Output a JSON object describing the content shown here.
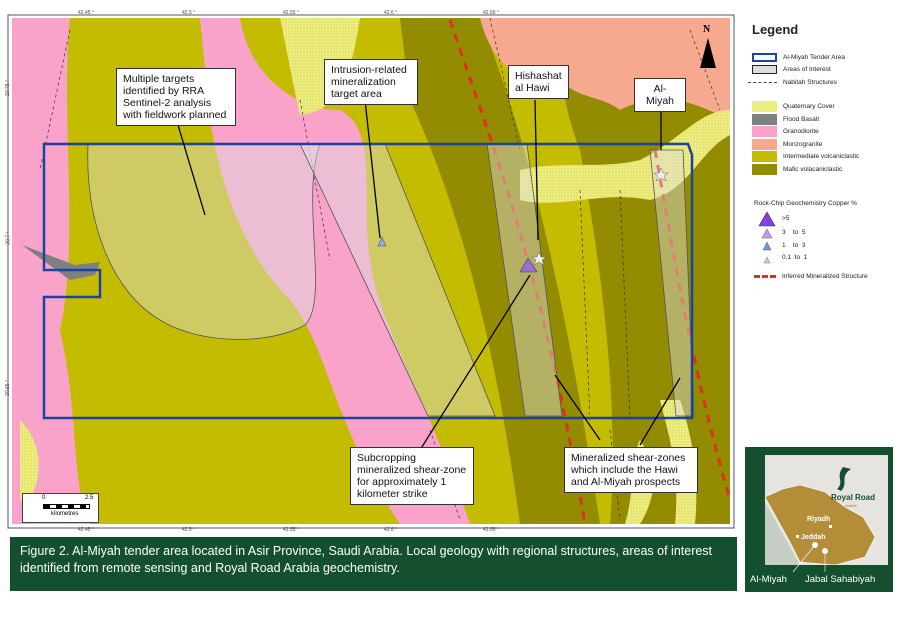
{
  "map": {
    "x_ticks": [
      "42.45 °",
      "42.5 °",
      "42.55 °",
      "42.6 °",
      "42.65 °"
    ],
    "y_ticks": [
      "20.75 °",
      "20.7 °",
      "20.65 °"
    ],
    "north_label": "N",
    "scale": {
      "start": "0",
      "end": "2.5",
      "unit": "kilometres"
    },
    "callouts": {
      "multiple_targets": "Multiple targets identified by RRA Sentinel-2 analysis with fieldwork planned",
      "intrusion": "Intrusion-related mineralization target area",
      "hishashat": "Hishashat al Hawi",
      "almiyah": "Al-Miyah",
      "subcropping": "Subcropping mineralized shear-zone for approximately 1 kilometer strike",
      "shear_zones": "Mineralized shear-zones which include the Hawi and Al-Miyah prospects"
    },
    "colors": {
      "intermediate": "#c4bc00",
      "mafic": "#938b00",
      "granodiorite": "#f9a3cb",
      "monzogranite": "#f6a98e",
      "quaternary": "#eeee80",
      "basalt": "#808080",
      "tender": "#1a44a0",
      "inferred": "#e03020"
    }
  },
  "legend": {
    "title": "Legend",
    "items": [
      "Al-Miyah Tender Area",
      "Areas of Interest",
      "Nabitah Structures"
    ],
    "units": [
      "Quaternary Cover",
      "Flood Basalt",
      "Granodiorite",
      "Monzogranite",
      "Intermediate volcaniclastic",
      "Mafic volacaniclastic"
    ],
    "geochem_title": "Rock-Chip Geochemistry Copper %",
    "geochem": [
      ">5",
      "3    to  5",
      "1    to  3",
      "0.1  to  1"
    ],
    "inferred": "Inferred Mineralized Structure"
  },
  "caption": "Figure 2. Al-Miyah tender area located in Asir Province, Saudi Arabia. Local geology with regional structures, areas of interest identified from remote sensing and Royal Road Arabia geochemistry.",
  "inset": {
    "brand": "Royal Road",
    "brand_sub": "Arabia",
    "cities": [
      "Riyadh",
      "Jeddah"
    ],
    "labels": [
      "Al-Miyah",
      "Jabal Sahabiyah"
    ]
  }
}
